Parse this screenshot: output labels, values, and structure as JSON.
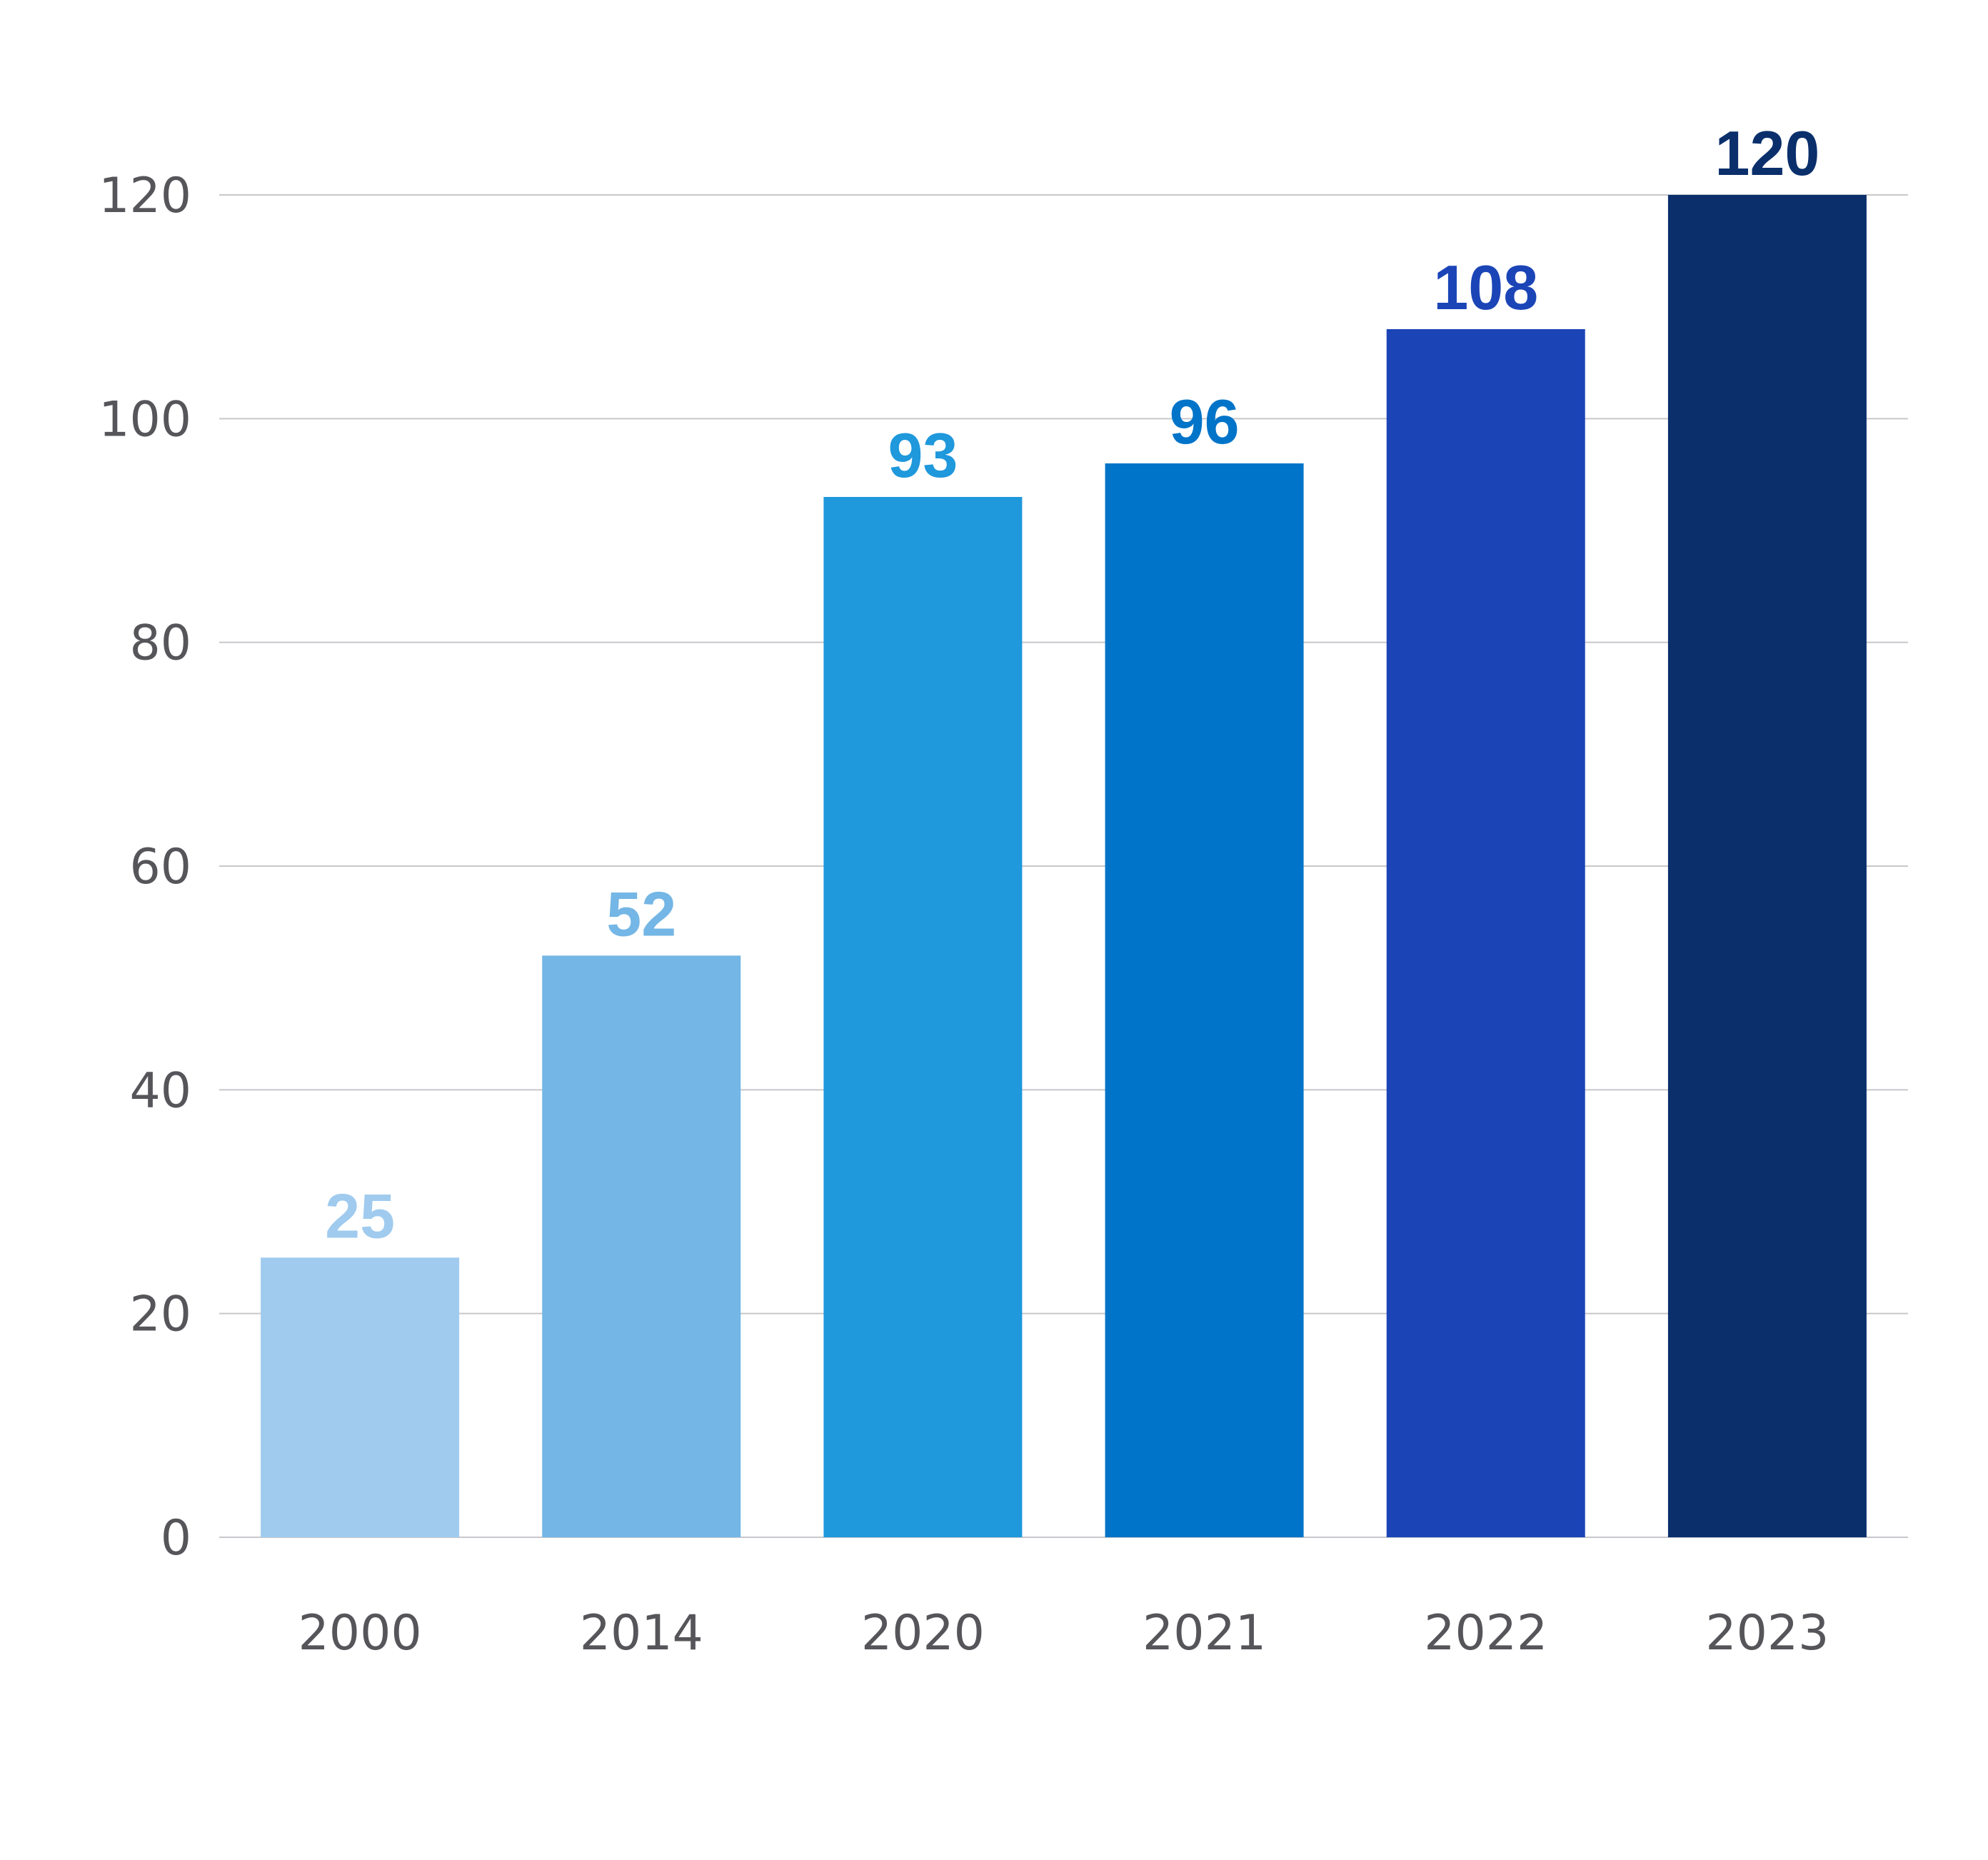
{
  "chart_data": {
    "type": "bar",
    "title": "",
    "xlabel": "",
    "ylabel": "",
    "categories": [
      "2000",
      "2014",
      "2020",
      "2021",
      "2022",
      "2023"
    ],
    "values": [
      25,
      52,
      93,
      96,
      108,
      120
    ],
    "data_labels": [
      "25",
      "52",
      "93",
      "96",
      "108",
      "120"
    ],
    "colors": [
      "#A0CBEF",
      "#74B6E5",
      "#1F98DC",
      "#0074C8",
      "#1B45B7",
      "#0A2F6B"
    ],
    "ylim": [
      0,
      120
    ],
    "yticks": [
      "0",
      "20",
      "40",
      "60",
      "80",
      "100",
      "120"
    ],
    "grid": true,
    "gridline_color": "#C8C8CC",
    "legend": "none"
  }
}
